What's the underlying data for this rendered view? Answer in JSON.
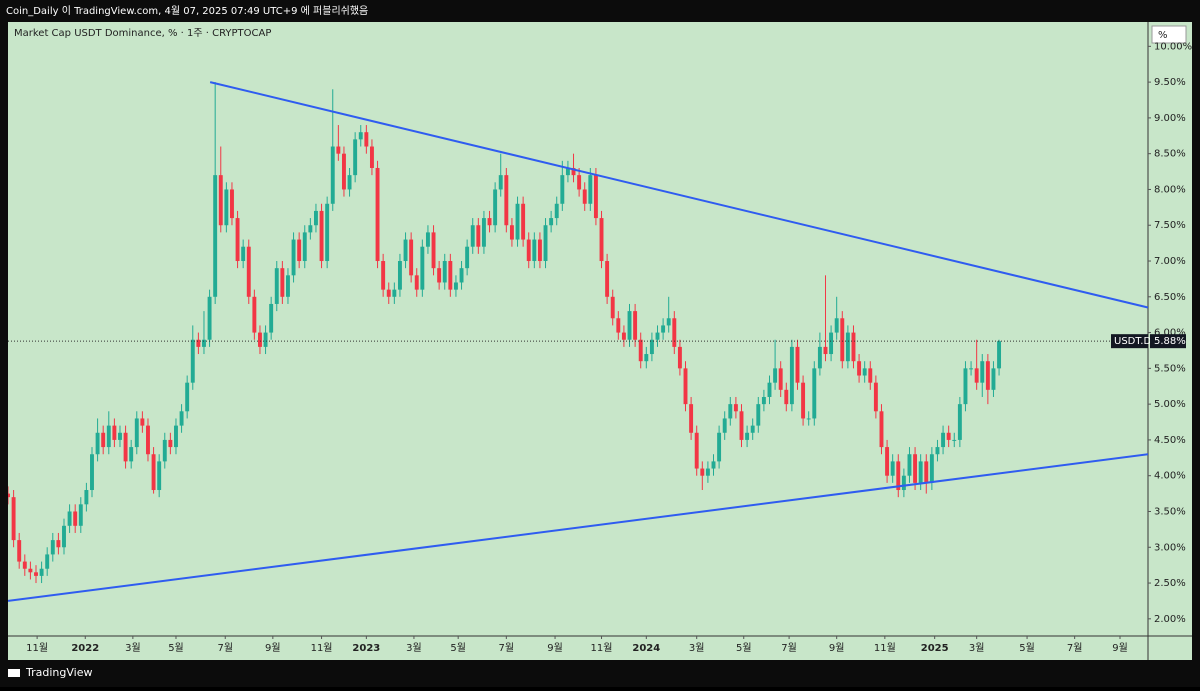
{
  "header": "Coin_Daily 이 TradingView.com, 4월 07, 2025 07:49 UTC+9 에 퍼블리쉬했음",
  "footer": "TradingView",
  "chart_data": {
    "type": "candlestick",
    "title": "Market Cap USDT Dominance, % · 1주 · CRYPTOCAP",
    "unit": "%",
    "up_color": "#22ab94",
    "down_color": "#f23645",
    "background": "#c8e6c9",
    "ylim": [
      1.76,
      10.34
    ],
    "yticks": [
      {
        "value": 2,
        "label": "2.00%"
      },
      {
        "value": 2.5,
        "label": "2.50%"
      },
      {
        "value": 3,
        "label": "3.00%"
      },
      {
        "value": 3.5,
        "label": "3.50%"
      },
      {
        "value": 4,
        "label": "4.00%"
      },
      {
        "value": 4.5,
        "label": "4.50%"
      },
      {
        "value": 5,
        "label": "5.00%"
      },
      {
        "value": 5.5,
        "label": "5.50%"
      },
      {
        "value": 6,
        "label": "6.00%"
      },
      {
        "value": 6.5,
        "label": "6.50%"
      },
      {
        "value": 7,
        "label": "7.00%"
      },
      {
        "value": 7.5,
        "label": "7.50%"
      },
      {
        "value": 8,
        "label": "8.00%"
      },
      {
        "value": 8.5,
        "label": "8.50%"
      },
      {
        "value": 9,
        "label": "9.00%"
      },
      {
        "value": 9.5,
        "label": "9.50%"
      },
      {
        "value": 10,
        "label": "10.00%"
      }
    ],
    "xlim": [
      0,
      203.6
    ],
    "xticks": [
      {
        "value": 5.2,
        "label": "11월"
      },
      {
        "value": 13.8,
        "label": "2022"
      },
      {
        "value": 22.3,
        "label": "3월"
      },
      {
        "value": 30,
        "label": "5월"
      },
      {
        "value": 38.8,
        "label": "7월"
      },
      {
        "value": 47.3,
        "label": "9월"
      },
      {
        "value": 56,
        "label": "11월"
      },
      {
        "value": 64,
        "label": "2023"
      },
      {
        "value": 72.5,
        "label": "3월"
      },
      {
        "value": 80.4,
        "label": "5월"
      },
      {
        "value": 89,
        "label": "7월"
      },
      {
        "value": 97.7,
        "label": "9월"
      },
      {
        "value": 106,
        "label": "11월"
      },
      {
        "value": 114,
        "label": "2024"
      },
      {
        "value": 123,
        "label": "3월"
      },
      {
        "value": 131.4,
        "label": "5월"
      },
      {
        "value": 139.5,
        "label": "7월"
      },
      {
        "value": 148,
        "label": "9월"
      },
      {
        "value": 156.6,
        "label": "11월"
      },
      {
        "value": 165.5,
        "label": "2025"
      },
      {
        "value": 173,
        "label": "3월"
      },
      {
        "value": 182,
        "label": "5월"
      },
      {
        "value": 190.5,
        "label": "7월"
      },
      {
        "value": 198.6,
        "label": "9월"
      }
    ],
    "last": {
      "symbol": "USDT.D",
      "value": 5.88,
      "label": "5.88%"
    },
    "trendlines": [
      {
        "color": "#2f5cf0",
        "from": [
          36.1,
          9.5
        ],
        "to": [
          203.6,
          6.35
        ]
      },
      {
        "color": "#2f5cf0",
        "from": [
          0,
          2.25
        ],
        "to": [
          203.6,
          4.3
        ]
      }
    ],
    "candles": [
      [
        3.75,
        3.85,
        3.6,
        3.7
      ],
      [
        3.7,
        3.8,
        3.0,
        3.1
      ],
      [
        3.1,
        3.2,
        2.7,
        2.8
      ],
      [
        2.8,
        2.9,
        2.6,
        2.7
      ],
      [
        2.7,
        2.8,
        2.55,
        2.65
      ],
      [
        2.65,
        2.75,
        2.5,
        2.6
      ],
      [
        2.6,
        2.8,
        2.5,
        2.7
      ],
      [
        2.7,
        3.0,
        2.6,
        2.9
      ],
      [
        2.9,
        3.2,
        2.8,
        3.1
      ],
      [
        3.1,
        3.2,
        2.9,
        3.0
      ],
      [
        3.0,
        3.4,
        2.9,
        3.3
      ],
      [
        3.3,
        3.6,
        3.2,
        3.5
      ],
      [
        3.5,
        3.6,
        3.2,
        3.3
      ],
      [
        3.3,
        3.7,
        3.2,
        3.6
      ],
      [
        3.6,
        3.9,
        3.5,
        3.8
      ],
      [
        3.8,
        4.4,
        3.7,
        4.3
      ],
      [
        4.3,
        4.8,
        4.2,
        4.6
      ],
      [
        4.6,
        4.7,
        4.3,
        4.4
      ],
      [
        4.4,
        4.9,
        4.3,
        4.7
      ],
      [
        4.7,
        4.8,
        4.4,
        4.5
      ],
      [
        4.5,
        4.7,
        4.4,
        4.6
      ],
      [
        4.6,
        4.7,
        4.1,
        4.2
      ],
      [
        4.2,
        4.5,
        4.1,
        4.4
      ],
      [
        4.4,
        4.9,
        4.3,
        4.8
      ],
      [
        4.8,
        4.9,
        4.6,
        4.7
      ],
      [
        4.7,
        4.8,
        4.2,
        4.3
      ],
      [
        4.3,
        4.4,
        3.75,
        3.8
      ],
      [
        3.8,
        4.3,
        3.7,
        4.2
      ],
      [
        4.2,
        4.6,
        4.1,
        4.5
      ],
      [
        4.5,
        4.6,
        4.3,
        4.4
      ],
      [
        4.4,
        4.8,
        4.3,
        4.7
      ],
      [
        4.7,
        5.0,
        4.6,
        4.9
      ],
      [
        4.9,
        5.4,
        4.8,
        5.3
      ],
      [
        5.3,
        6.1,
        5.2,
        5.9
      ],
      [
        5.9,
        6.0,
        5.7,
        5.8
      ],
      [
        5.8,
        6.3,
        5.7,
        5.9
      ],
      [
        5.9,
        6.6,
        5.8,
        6.5
      ],
      [
        6.5,
        9.5,
        6.4,
        8.2
      ],
      [
        8.2,
        8.6,
        7.4,
        7.5
      ],
      [
        7.5,
        8.1,
        7.4,
        8.0
      ],
      [
        8.0,
        8.1,
        7.5,
        7.6
      ],
      [
        7.6,
        7.7,
        6.9,
        7.0
      ],
      [
        7.0,
        7.3,
        6.9,
        7.2
      ],
      [
        7.2,
        7.3,
        6.4,
        6.5
      ],
      [
        6.5,
        6.6,
        5.9,
        6.0
      ],
      [
        6.0,
        6.1,
        5.7,
        5.8
      ],
      [
        5.8,
        6.1,
        5.7,
        6.0
      ],
      [
        6.0,
        6.5,
        5.9,
        6.4
      ],
      [
        6.4,
        7.0,
        6.3,
        6.9
      ],
      [
        6.9,
        7.0,
        6.4,
        6.5
      ],
      [
        6.5,
        6.9,
        6.4,
        6.8
      ],
      [
        6.8,
        7.4,
        6.7,
        7.3
      ],
      [
        7.3,
        7.4,
        6.9,
        7.0
      ],
      [
        7.0,
        7.5,
        6.9,
        7.4
      ],
      [
        7.4,
        7.6,
        7.3,
        7.5
      ],
      [
        7.5,
        7.8,
        7.4,
        7.7
      ],
      [
        7.7,
        7.8,
        6.9,
        7.0
      ],
      [
        7.0,
        7.9,
        6.9,
        7.8
      ],
      [
        7.8,
        9.4,
        7.7,
        8.6
      ],
      [
        8.6,
        8.9,
        8.4,
        8.5
      ],
      [
        8.5,
        8.6,
        7.9,
        8.0
      ],
      [
        8.0,
        8.3,
        7.9,
        8.2
      ],
      [
        8.2,
        8.8,
        8.1,
        8.7
      ],
      [
        8.7,
        8.9,
        8.6,
        8.8
      ],
      [
        8.8,
        8.9,
        8.5,
        8.6
      ],
      [
        8.6,
        8.7,
        8.2,
        8.3
      ],
      [
        8.3,
        8.4,
        6.9,
        7.0
      ],
      [
        7.0,
        7.1,
        6.5,
        6.6
      ],
      [
        6.6,
        6.7,
        6.4,
        6.5
      ],
      [
        6.5,
        6.7,
        6.4,
        6.6
      ],
      [
        6.6,
        7.1,
        6.5,
        7.0
      ],
      [
        7.0,
        7.4,
        6.9,
        7.3
      ],
      [
        7.3,
        7.4,
        6.7,
        6.8
      ],
      [
        6.8,
        6.9,
        6.5,
        6.6
      ],
      [
        6.6,
        7.3,
        6.5,
        7.2
      ],
      [
        7.2,
        7.5,
        7.1,
        7.4
      ],
      [
        7.4,
        7.5,
        6.8,
        6.9
      ],
      [
        6.9,
        7.0,
        6.6,
        6.7
      ],
      [
        6.7,
        7.1,
        6.6,
        7.0
      ],
      [
        7.0,
        7.1,
        6.5,
        6.6
      ],
      [
        6.6,
        6.8,
        6.5,
        6.7
      ],
      [
        6.7,
        7.0,
        6.6,
        6.9
      ],
      [
        6.9,
        7.3,
        6.8,
        7.2
      ],
      [
        7.2,
        7.6,
        7.1,
        7.5
      ],
      [
        7.5,
        7.6,
        7.1,
        7.2
      ],
      [
        7.2,
        7.7,
        7.1,
        7.6
      ],
      [
        7.6,
        7.7,
        7.4,
        7.5
      ],
      [
        7.5,
        8.1,
        7.4,
        8.0
      ],
      [
        8.0,
        8.5,
        7.9,
        8.2
      ],
      [
        8.2,
        8.3,
        7.4,
        7.5
      ],
      [
        7.5,
        7.6,
        7.2,
        7.3
      ],
      [
        7.3,
        7.9,
        7.2,
        7.8
      ],
      [
        7.8,
        7.9,
        7.2,
        7.3
      ],
      [
        7.3,
        7.4,
        6.9,
        7.0
      ],
      [
        7.0,
        7.4,
        6.9,
        7.3
      ],
      [
        7.3,
        7.4,
        6.9,
        7.0
      ],
      [
        7.0,
        7.6,
        6.9,
        7.5
      ],
      [
        7.5,
        7.7,
        7.4,
        7.6
      ],
      [
        7.6,
        7.9,
        7.5,
        7.8
      ],
      [
        7.8,
        8.4,
        7.7,
        8.2
      ],
      [
        8.2,
        8.4,
        8.1,
        8.3
      ],
      [
        8.3,
        8.5,
        8.1,
        8.2
      ],
      [
        8.2,
        8.3,
        7.9,
        8.0
      ],
      [
        8.0,
        8.1,
        7.7,
        7.8
      ],
      [
        7.8,
        8.3,
        7.7,
        8.2
      ],
      [
        8.2,
        8.3,
        7.5,
        7.6
      ],
      [
        7.6,
        7.7,
        6.9,
        7.0
      ],
      [
        7.0,
        7.1,
        6.4,
        6.5
      ],
      [
        6.5,
        6.6,
        6.1,
        6.2
      ],
      [
        6.2,
        6.3,
        5.9,
        6.0
      ],
      [
        6.0,
        6.1,
        5.8,
        5.9
      ],
      [
        5.9,
        6.4,
        5.8,
        6.3
      ],
      [
        6.3,
        6.4,
        5.8,
        5.9
      ],
      [
        5.9,
        6.0,
        5.5,
        5.6
      ],
      [
        5.6,
        5.8,
        5.5,
        5.7
      ],
      [
        5.7,
        6.0,
        5.6,
        5.9
      ],
      [
        5.9,
        6.1,
        5.8,
        6.0
      ],
      [
        6.0,
        6.2,
        5.9,
        6.1
      ],
      [
        6.1,
        6.5,
        6.0,
        6.2
      ],
      [
        6.2,
        6.3,
        5.7,
        5.8
      ],
      [
        5.8,
        5.9,
        5.4,
        5.5
      ],
      [
        5.5,
        5.6,
        4.9,
        5.0
      ],
      [
        5.0,
        5.1,
        4.5,
        4.6
      ],
      [
        4.6,
        4.7,
        4.0,
        4.1
      ],
      [
        4.1,
        4.2,
        3.8,
        4.0
      ],
      [
        4.0,
        4.2,
        3.9,
        4.1
      ],
      [
        4.1,
        4.3,
        4.0,
        4.2
      ],
      [
        4.2,
        4.7,
        4.1,
        4.6
      ],
      [
        4.6,
        4.9,
        4.5,
        4.8
      ],
      [
        4.8,
        5.1,
        4.7,
        5.0
      ],
      [
        5.0,
        5.1,
        4.8,
        4.9
      ],
      [
        4.9,
        5.0,
        4.4,
        4.5
      ],
      [
        4.5,
        4.7,
        4.4,
        4.6
      ],
      [
        4.6,
        4.8,
        4.5,
        4.7
      ],
      [
        4.7,
        5.1,
        4.6,
        5.0
      ],
      [
        5.0,
        5.2,
        4.9,
        5.1
      ],
      [
        5.1,
        5.4,
        5.0,
        5.3
      ],
      [
        5.3,
        5.9,
        5.2,
        5.5
      ],
      [
        5.5,
        5.6,
        5.1,
        5.2
      ],
      [
        5.2,
        5.3,
        4.9,
        5.0
      ],
      [
        5.0,
        5.9,
        4.9,
        5.8
      ],
      [
        5.8,
        5.9,
        5.2,
        5.3
      ],
      [
        5.3,
        5.4,
        4.7,
        4.8
      ],
      [
        4.8,
        4.9,
        4.7,
        4.8
      ],
      [
        4.8,
        5.6,
        4.7,
        5.5
      ],
      [
        5.5,
        6.0,
        5.4,
        5.8
      ],
      [
        5.8,
        6.8,
        5.6,
        5.7
      ],
      [
        5.7,
        6.1,
        5.6,
        6.0
      ],
      [
        6.0,
        6.5,
        5.9,
        6.2
      ],
      [
        6.2,
        6.3,
        5.5,
        5.6
      ],
      [
        5.6,
        6.1,
        5.5,
        6.0
      ],
      [
        6.0,
        6.1,
        5.5,
        5.6
      ],
      [
        5.6,
        5.7,
        5.3,
        5.4
      ],
      [
        5.4,
        5.6,
        5.3,
        5.5
      ],
      [
        5.5,
        5.6,
        5.2,
        5.3
      ],
      [
        5.3,
        5.4,
        4.8,
        4.9
      ],
      [
        4.9,
        5.0,
        4.3,
        4.4
      ],
      [
        4.4,
        4.5,
        3.9,
        4.0
      ],
      [
        4.0,
        4.3,
        3.9,
        4.2
      ],
      [
        4.2,
        4.3,
        3.7,
        3.8
      ],
      [
        3.8,
        4.1,
        3.7,
        4.0
      ],
      [
        4.0,
        4.4,
        3.9,
        4.3
      ],
      [
        4.3,
        4.4,
        3.8,
        3.9
      ],
      [
        3.9,
        4.3,
        3.8,
        4.2
      ],
      [
        4.2,
        4.3,
        3.75,
        3.9
      ],
      [
        3.9,
        4.4,
        3.8,
        4.3
      ],
      [
        4.3,
        4.5,
        4.2,
        4.4
      ],
      [
        4.4,
        4.7,
        4.3,
        4.6
      ],
      [
        4.6,
        4.7,
        4.4,
        4.5
      ],
      [
        4.5,
        4.6,
        4.4,
        4.5
      ],
      [
        4.5,
        5.1,
        4.4,
        5.0
      ],
      [
        5.0,
        5.6,
        4.9,
        5.5
      ],
      [
        5.5,
        5.6,
        5.4,
        5.5
      ],
      [
        5.5,
        5.9,
        5.2,
        5.3
      ],
      [
        5.3,
        5.7,
        5.1,
        5.6
      ],
      [
        5.6,
        5.7,
        5.0,
        5.2
      ],
      [
        5.2,
        5.6,
        5.1,
        5.5
      ],
      [
        5.5,
        5.9,
        5.4,
        5.88
      ]
    ]
  }
}
